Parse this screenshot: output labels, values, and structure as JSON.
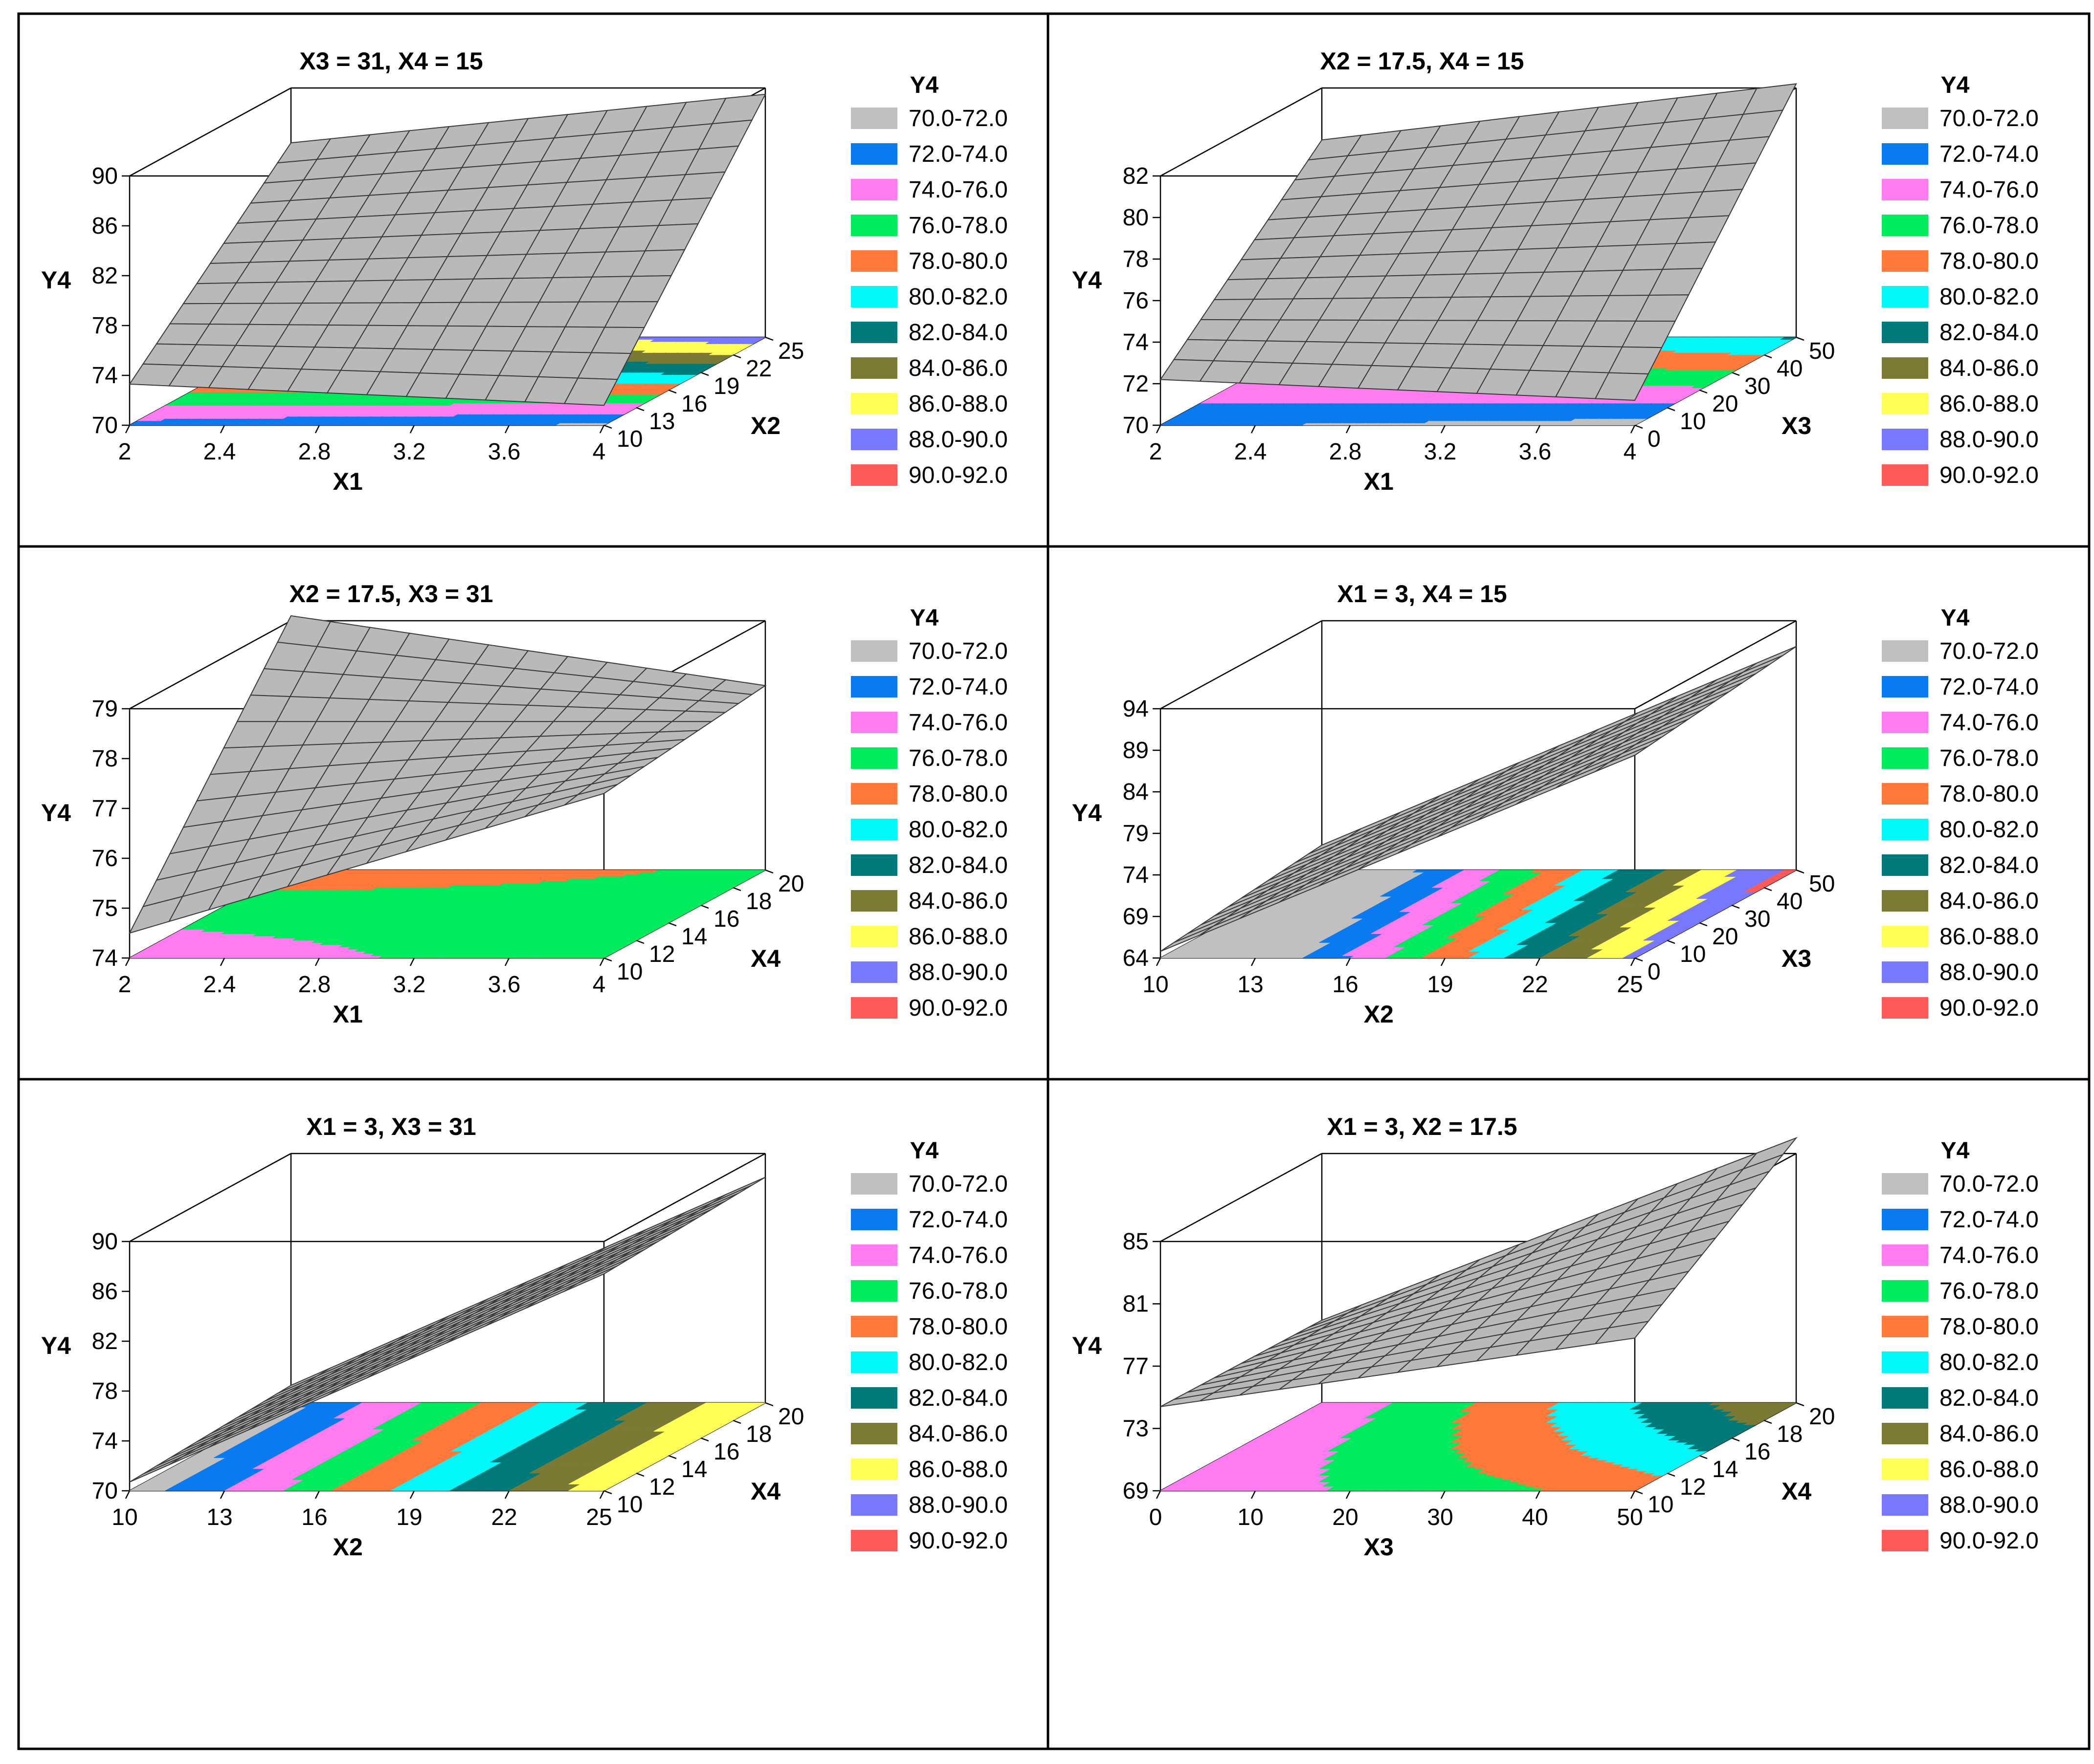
{
  "legend": {
    "title": "Y4",
    "ranges": [
      "70.0-72.0",
      "72.0-74.0",
      "74.0-76.0",
      "76.0-78.0",
      "78.0-80.0",
      "80.0-82.0",
      "82.0-84.0",
      "84.0-86.0",
      "86.0-88.0",
      "88.0-90.0",
      "90.0-92.0"
    ],
    "colors": [
      "#c0c0c0",
      "#0a7af0",
      "#ff7cf0",
      "#00ea5e",
      "#ff7a3a",
      "#00f8f8",
      "#007a78",
      "#7a7a34",
      "#ffff55",
      "#7878ff",
      "#ff5a5a"
    ]
  },
  "chart_data": [
    {
      "type": "surface",
      "title": "X3 = 31, X4 = 15",
      "zlabel": "Y4",
      "x": {
        "label": "X1",
        "ticks": [
          "2",
          "2.4",
          "2.8",
          "3.2",
          "3.6",
          "4"
        ],
        "range": [
          2,
          4
        ]
      },
      "y": {
        "label": "X2",
        "ticks": [
          "10",
          "13",
          "16",
          "19",
          "22",
          "25"
        ],
        "range": [
          10,
          25
        ]
      },
      "z": {
        "ticks": [
          "70",
          "74",
          "78",
          "82",
          "86",
          "90"
        ],
        "range": [
          70,
          90
        ]
      },
      "corners": {
        "x_min_y_min": 73.3,
        "x_max_y_min": 71.6,
        "x_min_y_max": 85.6,
        "x_max_y_max": 89.5
      }
    },
    {
      "type": "surface",
      "title": "X2 = 17.5, X4 = 15",
      "zlabel": "Y4",
      "x": {
        "label": "X1",
        "ticks": [
          "2",
          "2.4",
          "2.8",
          "3.2",
          "3.6",
          "4"
        ],
        "range": [
          2,
          4
        ]
      },
      "y": {
        "label": "X3",
        "ticks": [
          "0",
          "10",
          "20",
          "30",
          "40",
          "50"
        ],
        "range": [
          0,
          50
        ]
      },
      "z": {
        "ticks": [
          "70",
          "72",
          "74",
          "76",
          "78",
          "80",
          "82"
        ],
        "range": [
          70,
          82
        ]
      },
      "corners": {
        "x_min_y_min": 72.2,
        "x_max_y_min": 71.2,
        "x_min_y_max": 79.5,
        "x_max_y_max": 82.2
      }
    },
    {
      "type": "surface",
      "title": "X2 = 17.5, X3 = 31",
      "zlabel": "Y4",
      "x": {
        "label": "X1",
        "ticks": [
          "2",
          "2.4",
          "2.8",
          "3.2",
          "3.6",
          "4"
        ],
        "range": [
          2,
          4
        ]
      },
      "y": {
        "label": "X4",
        "ticks": [
          "10",
          "12",
          "14",
          "16",
          "18",
          "20"
        ],
        "range": [
          10,
          20
        ]
      },
      "z": {
        "ticks": [
          "74",
          "75",
          "76",
          "77",
          "78",
          "79"
        ],
        "range": [
          74,
          79
        ]
      },
      "corners": {
        "x_min_y_min": 74.5,
        "x_max_y_min": 77.3,
        "x_min_y_max": 79.1,
        "x_max_y_max": 77.7
      }
    },
    {
      "type": "surface",
      "title": "X1 = 3, X4 = 15",
      "zlabel": "Y4",
      "x": {
        "label": "X2",
        "ticks": [
          "10",
          "13",
          "16",
          "19",
          "22",
          "25"
        ],
        "range": [
          10,
          25
        ]
      },
      "y": {
        "label": "X3",
        "ticks": [
          "0",
          "10",
          "20",
          "30",
          "40",
          "50"
        ],
        "range": [
          0,
          50
        ]
      },
      "z": {
        "ticks": [
          "64",
          "69",
          "74",
          "79",
          "84",
          "89",
          "94"
        ],
        "range": [
          64,
          94
        ]
      },
      "corners": {
        "x_min_y_min": 64.8,
        "x_max_y_min": 88.4,
        "x_min_y_max": 67.0,
        "x_max_y_max": 90.9
      }
    },
    {
      "type": "surface",
      "title": "X1 = 3, X3 = 31",
      "zlabel": "Y4",
      "x": {
        "label": "X2",
        "ticks": [
          "10",
          "13",
          "16",
          "19",
          "22",
          "25"
        ],
        "range": [
          10,
          25
        ]
      },
      "y": {
        "label": "X4",
        "ticks": [
          "10",
          "12",
          "14",
          "16",
          "18",
          "20"
        ],
        "range": [
          10,
          20
        ]
      },
      "z": {
        "ticks": [
          "70",
          "74",
          "78",
          "82",
          "86",
          "90"
        ],
        "range": [
          70,
          90
        ]
      },
      "corners": {
        "x_min_y_min": 70.7,
        "x_max_y_min": 87.4,
        "x_min_y_max": 71.4,
        "x_max_y_max": 88.1
      }
    },
    {
      "type": "surface",
      "title": "X1 = 3, X2 = 17.5",
      "zlabel": "Y4",
      "x": {
        "label": "X3",
        "ticks": [
          "0",
          "10",
          "20",
          "30",
          "40",
          "50"
        ],
        "range": [
          0,
          50
        ]
      },
      "y": {
        "label": "X4",
        "ticks": [
          "10",
          "12",
          "14",
          "16",
          "18",
          "20"
        ],
        "range": [
          10,
          20
        ]
      },
      "z": {
        "ticks": [
          "69",
          "73",
          "77",
          "81",
          "85"
        ],
        "range": [
          69,
          85
        ]
      },
      "corners": {
        "x_min_y_min": 74.4,
        "x_max_y_min": 78.8,
        "x_min_y_max": 74.3,
        "x_max_y_max": 86.0
      }
    }
  ]
}
